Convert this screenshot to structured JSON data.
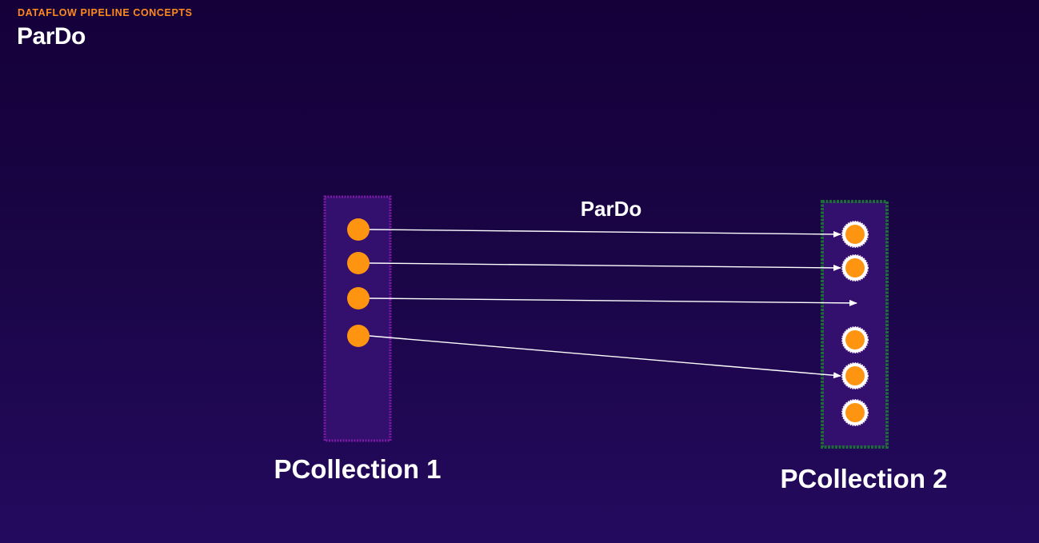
{
  "header": {
    "eyebrow": "DATAFLOW PIPELINE CONCEPTS",
    "title": "ParDo"
  },
  "diagram": {
    "transform_label": "ParDo",
    "input": {
      "label": "PCollection 1",
      "element_count": 4
    },
    "output": {
      "label": "PCollection 2",
      "element_count": 5
    },
    "mappings": [
      {
        "from": 1,
        "to": 1
      },
      {
        "from": 2,
        "to": 2
      },
      {
        "from": 3,
        "to": null
      },
      {
        "from": 4,
        "to": 4
      }
    ],
    "colors": {
      "element": "#ff9410",
      "input_box": "#33106e",
      "input_border": "#7e1aa6",
      "output_box": "#33106e",
      "output_border": "#1f6b3a",
      "arrow": "#ffffff",
      "accent": "#ff8a1f"
    }
  }
}
